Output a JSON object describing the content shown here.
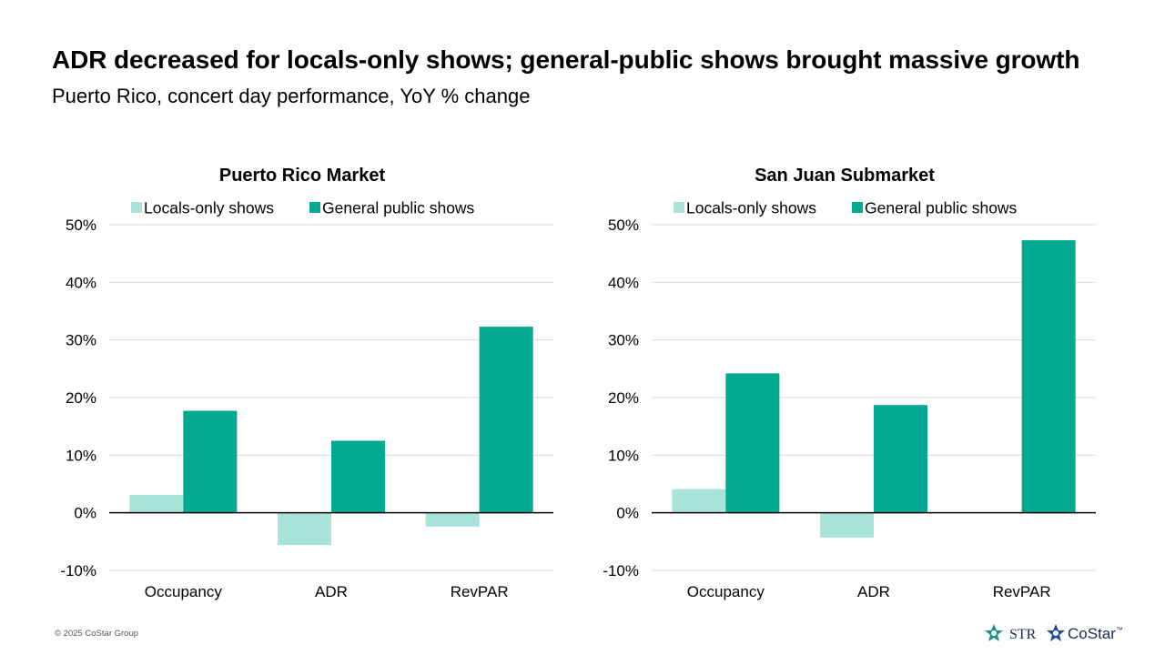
{
  "title": "ADR decreased for locals-only shows; general-public shows brought massive growth",
  "subtitle": "Puerto Rico, concert day performance, YoY % change",
  "footer": "© 2025 CoStar Group",
  "logos": {
    "str": "STR",
    "costar": "CoStar",
    "costar_tm": "™"
  },
  "colors": {
    "locals": "#a8e4da",
    "general": "#00a98f",
    "grid": "#d9d9d9",
    "axis": "#000000"
  },
  "chart_data": [
    {
      "type": "bar",
      "title": "Puerto Rico Market",
      "categories": [
        "Occupancy",
        "ADR",
        "RevPAR"
      ],
      "series": [
        {
          "name": "Locals-only shows",
          "values": [
            3.1,
            -5.6,
            -2.4
          ]
        },
        {
          "name": "General public shows",
          "values": [
            17.7,
            12.5,
            32.3
          ]
        }
      ],
      "ylim": [
        -10,
        50
      ],
      "yticks": [
        50,
        40,
        30,
        20,
        10,
        0,
        -10
      ],
      "ytick_labels": [
        "50%",
        "40%",
        "30%",
        "20%",
        "10%",
        "0%",
        "-10%"
      ],
      "legend": "top"
    },
    {
      "type": "bar",
      "title": "San Juan Submarket",
      "categories": [
        "Occupancy",
        "ADR",
        "RevPAR"
      ],
      "series": [
        {
          "name": "Locals-only shows",
          "values": [
            4.1,
            -4.3,
            0
          ]
        },
        {
          "name": "General public shows",
          "values": [
            24.2,
            18.7,
            47.3
          ]
        }
      ],
      "ylim": [
        -10,
        50
      ],
      "yticks": [
        50,
        40,
        30,
        20,
        10,
        0,
        -10
      ],
      "ytick_labels": [
        "50%",
        "40%",
        "30%",
        "20%",
        "10%",
        "0%",
        "-10%"
      ],
      "legend": "top"
    }
  ]
}
